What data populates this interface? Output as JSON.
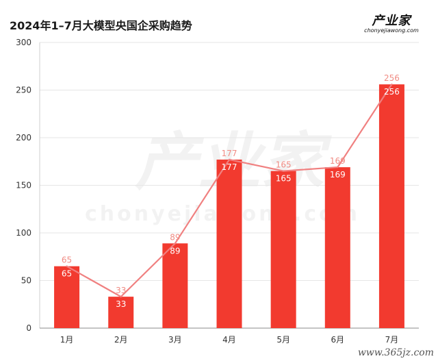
{
  "logo": {
    "brand": "产业家",
    "domain": "chonyejiawong.com"
  },
  "watermark": {
    "brand": "产业家",
    "domain": "chonyejiawong.com",
    "site": "www.365jz.com"
  },
  "chart_data": {
    "type": "bar",
    "title": "2024年1–7月大模型央国企采购趋势",
    "categories": [
      "1月",
      "2月",
      "3月",
      "4月",
      "5月",
      "6月",
      "7月"
    ],
    "series": [
      {
        "type": "bar",
        "values": [
          65,
          33,
          89,
          177,
          165,
          169,
          256
        ],
        "color": "#f23a2f"
      },
      {
        "type": "line",
        "values": [
          65,
          33,
          89,
          177,
          165,
          169,
          256
        ],
        "color": "#f08080"
      }
    ],
    "ylim": [
      0,
      300
    ],
    "yticks": [
      0,
      50,
      100,
      150,
      200,
      250,
      300
    ],
    "grid": true,
    "xlabel": "",
    "ylabel": ""
  }
}
